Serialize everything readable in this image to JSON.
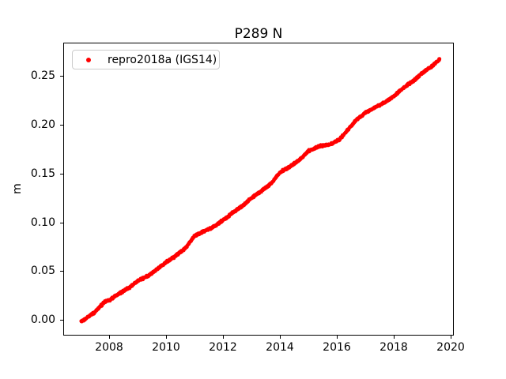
{
  "chart_data": {
    "type": "scatter",
    "title": "P289 N",
    "xlabel": "",
    "ylabel": "m",
    "grid": false,
    "legend_position": "upper left",
    "background_color": "#ffffff",
    "axis_color": "#000000",
    "xlim": [
      2006.39,
      2020.11
    ],
    "ylim": [
      -0.016,
      0.284
    ],
    "xticks": [
      2008,
      2010,
      2012,
      2014,
      2016,
      2018,
      2020
    ],
    "xtick_labels": [
      "2008",
      "2010",
      "2012",
      "2014",
      "2016",
      "2018",
      "2020"
    ],
    "yticks": [
      0.0,
      0.05,
      0.1,
      0.15,
      0.2,
      0.25
    ],
    "ytick_labels": [
      "0.00",
      "0.05",
      "0.10",
      "0.15",
      "0.20",
      "0.25"
    ],
    "series": [
      {
        "name": "repro2018a (IGS14)",
        "color": "#ff0000",
        "marker": "dot",
        "render_points_per_year": 160,
        "noise_m": 0.0012,
        "trend_points": [
          [
            2007.02,
            -0.002
          ],
          [
            2007.25,
            0.003
          ],
          [
            2007.5,
            0.008
          ],
          [
            2007.85,
            0.019
          ],
          [
            2008.0,
            0.02
          ],
          [
            2008.35,
            0.027
          ],
          [
            2008.7,
            0.033
          ],
          [
            2009.0,
            0.04
          ],
          [
            2009.35,
            0.045
          ],
          [
            2009.7,
            0.052
          ],
          [
            2010.0,
            0.059
          ],
          [
            2010.35,
            0.066
          ],
          [
            2010.7,
            0.074
          ],
          [
            2011.0,
            0.086
          ],
          [
            2011.35,
            0.091
          ],
          [
            2011.7,
            0.096
          ],
          [
            2012.0,
            0.102
          ],
          [
            2012.35,
            0.11
          ],
          [
            2012.7,
            0.117
          ],
          [
            2013.0,
            0.125
          ],
          [
            2013.35,
            0.132
          ],
          [
            2013.7,
            0.14
          ],
          [
            2014.0,
            0.151
          ],
          [
            2014.35,
            0.157
          ],
          [
            2014.7,
            0.164
          ],
          [
            2015.0,
            0.173
          ],
          [
            2015.4,
            0.178
          ],
          [
            2015.8,
            0.18
          ],
          [
            2016.1,
            0.185
          ],
          [
            2016.45,
            0.197
          ],
          [
            2016.7,
            0.205
          ],
          [
            2017.0,
            0.212
          ],
          [
            2017.35,
            0.218
          ],
          [
            2017.7,
            0.223
          ],
          [
            2018.0,
            0.229
          ],
          [
            2018.35,
            0.238
          ],
          [
            2018.7,
            0.245
          ],
          [
            2019.0,
            0.253
          ],
          [
            2019.3,
            0.259
          ],
          [
            2019.62,
            0.267
          ]
        ]
      }
    ]
  }
}
